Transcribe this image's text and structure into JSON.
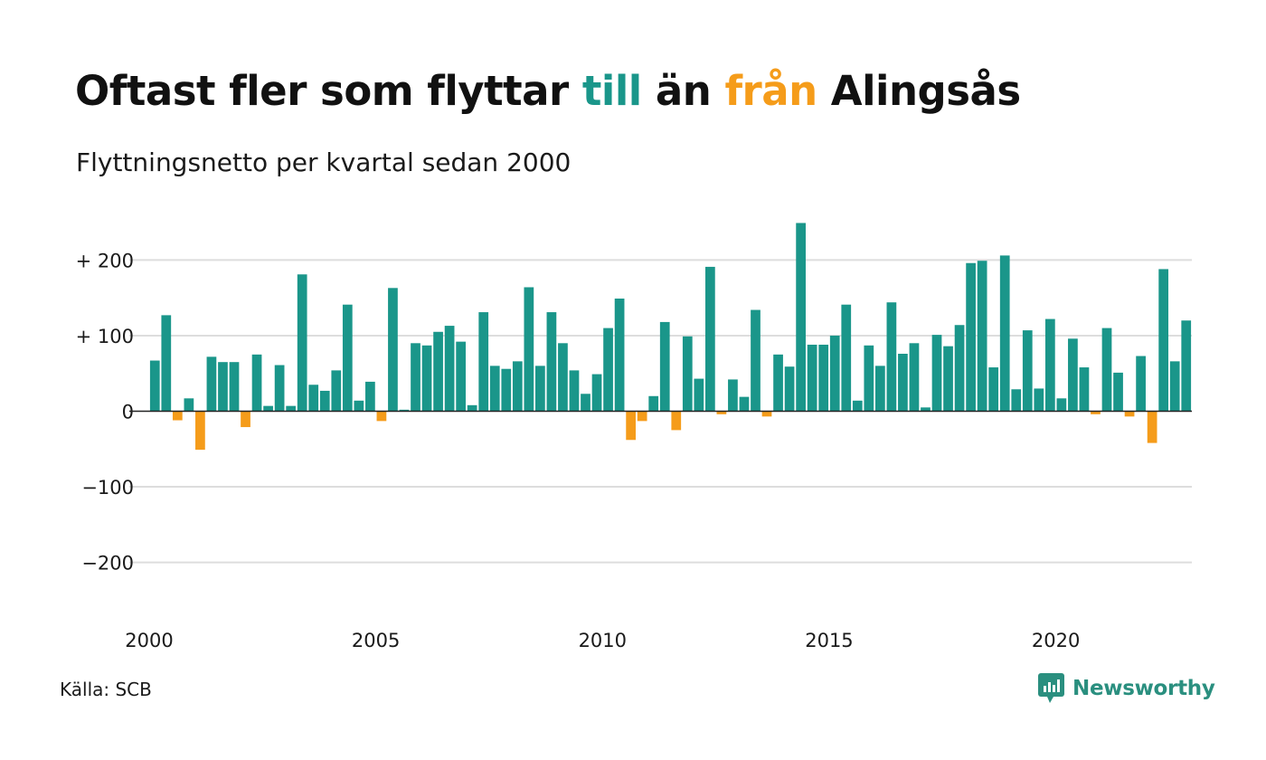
{
  "title": {
    "part1": "Oftast fler som flyttar ",
    "till": "till",
    "part2": " än ",
    "fran": "från",
    "part3": " Alingsås"
  },
  "subtitle": "Flyttningsnetto per kvartal sedan 2000",
  "source": "Källa: SCB",
  "brand": "Newsworthy",
  "colors": {
    "positive": "#1a968a",
    "negative": "#f59c1a",
    "grid": "#dddddd",
    "brand": "#2a8f7f"
  },
  "chart_data": {
    "type": "bar",
    "title": "Oftast fler som flyttar till än från Alingsås",
    "subtitle": "Flyttningsnetto per kvartal sedan 2000",
    "xlabel": "",
    "ylabel": "",
    "ylim": [
      -250,
      250
    ],
    "yticks": [
      200,
      100,
      0,
      -100,
      -200
    ],
    "ytick_labels": [
      "+ 200",
      "+ 100",
      "0",
      "−100",
      "−200"
    ],
    "xtick_labels": [
      "2000",
      "2005",
      "2010",
      "2015",
      "2020"
    ],
    "grid": "horizontal",
    "first_quarter": "2000 Q1",
    "values": [
      67,
      127,
      -12,
      17,
      -51,
      72,
      65,
      65,
      -21,
      75,
      7,
      61,
      7,
      181,
      35,
      27,
      54,
      141,
      14,
      39,
      -13,
      163,
      2,
      90,
      87,
      105,
      113,
      92,
      8,
      131,
      60,
      56,
      66,
      164,
      60,
      131,
      90,
      54,
      23,
      49,
      110,
      149,
      -38,
      -13,
      20,
      118,
      -25,
      99,
      43,
      191,
      -4,
      42,
      19,
      134,
      -7,
      75,
      59,
      249,
      88,
      88,
      100,
      141,
      14,
      87,
      60,
      144,
      76,
      90,
      5,
      101,
      86,
      114,
      196,
      199,
      58,
      206,
      29,
      107,
      30,
      122,
      17,
      96,
      58,
      -4,
      110,
      51,
      -7,
      73,
      -42,
      188,
      66,
      120
    ]
  }
}
